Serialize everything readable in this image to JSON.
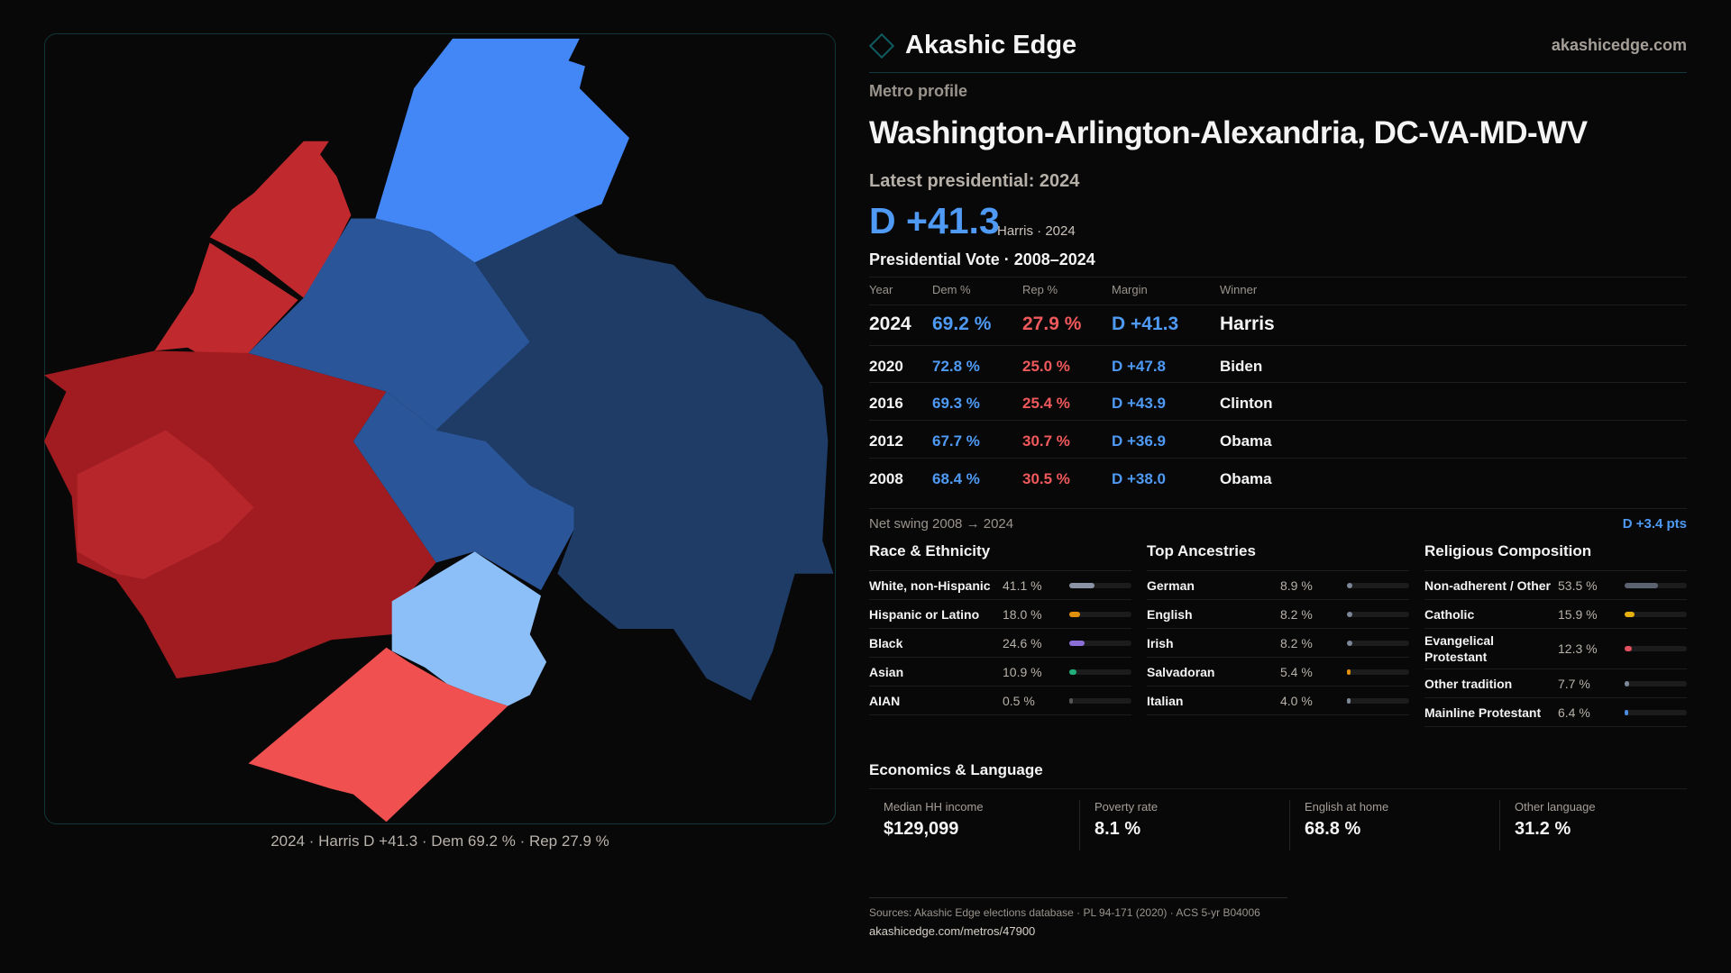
{
  "map": {
    "caption": "2024 · Harris D +41.3 · Dem 69.2 % · Rep 27.9 %",
    "colors": {
      "safe_dem": "#1e3c66",
      "likely_dem": "#2a5598",
      "lean_dem": "#4287f5",
      "tilt_dem": "#8cbff8",
      "safe_rep": "#a01c20",
      "likely_rep": "#c0292e",
      "lean_rep": "#f05050"
    }
  },
  "header": {
    "brand": "Akashic Edge",
    "site": "akashicedge.com",
    "logo_icon": "diamond-icon"
  },
  "profile": {
    "kicker": "Metro profile",
    "title": "Washington-Arlington-Alexandria, DC-VA-MD-WV",
    "latest_label": "Latest presidential: 2024",
    "margin": "D +41.3",
    "margin_sub": "Harris · 2024"
  },
  "votes": {
    "title": "Presidential Vote · 2008–2024",
    "headers": [
      "Year",
      "Dem %",
      "Rep %",
      "Margin",
      "Winner"
    ],
    "rows": [
      [
        "2024",
        "69.2 %",
        "27.9 %",
        "D +41.3",
        "Harris"
      ],
      [
        "2020",
        "72.8 %",
        "25.0 %",
        "D +47.8",
        "Biden"
      ],
      [
        "2016",
        "69.3 %",
        "25.4 %",
        "D +43.9",
        "Clinton"
      ],
      [
        "2012",
        "67.7 %",
        "30.7 %",
        "D +36.9",
        "Obama"
      ],
      [
        "2008",
        "68.4 %",
        "30.5 %",
        "D +38.0",
        "Obama"
      ]
    ],
    "swing_label": "Net swing 2008 → 2024",
    "swing_value": "D +3.4 pts"
  },
  "sections": [
    {
      "title": "Race & Ethnicity",
      "items": [
        {
          "label": "White, non-Hispanic",
          "value": "41.1 %",
          "pct": 41.1,
          "color": "#8a94a6"
        },
        {
          "label": "Hispanic or Latino",
          "value": "18.0 %",
          "pct": 18.0,
          "color": "#e0900a"
        },
        {
          "label": "Black",
          "value": "24.6 %",
          "pct": 24.6,
          "color": "#8b6fd6"
        },
        {
          "label": "Asian",
          "value": "10.9 %",
          "pct": 10.9,
          "color": "#22b07a"
        },
        {
          "label": "AIAN",
          "value": "0.5 %",
          "pct": 0.5,
          "color": "#555"
        }
      ]
    },
    {
      "title": "Top Ancestries",
      "items": [
        {
          "label": "German",
          "value": "8.9 %",
          "pct": 8.9,
          "color": "#7c8799"
        },
        {
          "label": "English",
          "value": "8.2 %",
          "pct": 8.2,
          "color": "#7c8799"
        },
        {
          "label": "Irish",
          "value": "8.2 %",
          "pct": 8.2,
          "color": "#7c8799"
        },
        {
          "label": "Salvadoran",
          "value": "5.4 %",
          "pct": 5.4,
          "color": "#e0900a"
        },
        {
          "label": "Italian",
          "value": "4.0 %",
          "pct": 4.0,
          "color": "#7c8799"
        }
      ]
    },
    {
      "title": "Religious Composition",
      "items": [
        {
          "label": "Non-adherent / Other",
          "value": "53.5 %",
          "pct": 53.5,
          "color": "#5c6370"
        },
        {
          "label": "Catholic",
          "value": "15.9 %",
          "pct": 15.9,
          "color": "#e6b010"
        },
        {
          "label": "Evangelical Protestant",
          "value": "12.3 %",
          "pct": 12.3,
          "color": "#e05060"
        },
        {
          "label": "Other tradition",
          "value": "7.7 %",
          "pct": 7.7,
          "color": "#7c8799"
        },
        {
          "label": "Mainline Protestant",
          "value": "6.4 %",
          "pct": 6.4,
          "color": "#4a8ce0"
        }
      ]
    }
  ],
  "economics": {
    "title": "Economics & Language",
    "items": [
      {
        "label": "Median HH income",
        "value": "$129,099"
      },
      {
        "label": "Poverty rate",
        "value": "8.1 %"
      },
      {
        "label": "English at home",
        "value": "68.8 %"
      },
      {
        "label": "Other language",
        "value": "31.2 %"
      }
    ]
  },
  "footer": {
    "sources": "Sources: Akashic Edge elections database · PL 94-171 (2020) · ACS 5-yr B04006",
    "url": "akashicedge.com/metros/47900"
  }
}
